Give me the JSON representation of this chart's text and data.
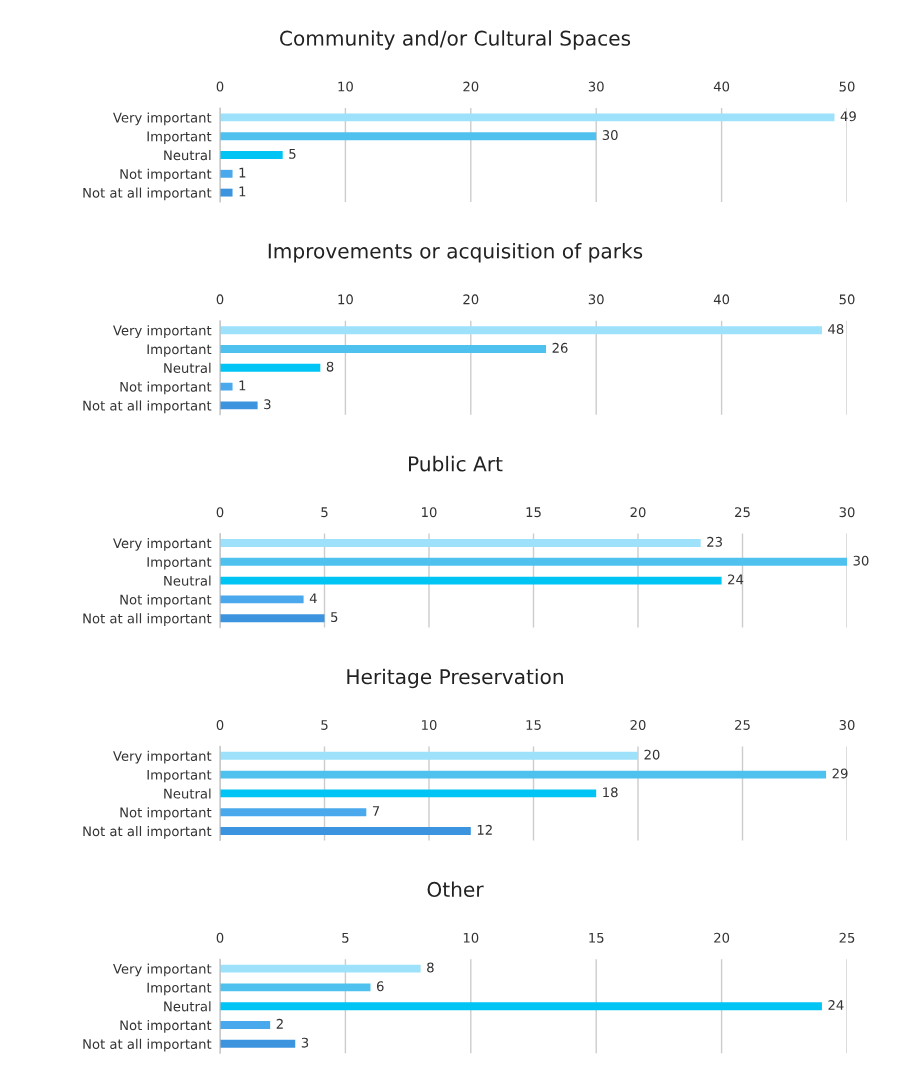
{
  "chart_data": [
    {
      "type": "bar",
      "orientation": "horizontal",
      "title": "Community and/or Cultural Spaces",
      "categories": [
        "Very important",
        "Important",
        "Neutral",
        "Not important",
        "Not at all important"
      ],
      "values": [
        49,
        30,
        5,
        1,
        1
      ],
      "colors": [
        "#9ee1fa",
        "#4fc1ef",
        "#00c4f4",
        "#4aa8ec",
        "#3d94de"
      ],
      "xlim": [
        0,
        50
      ],
      "xticks": [
        0,
        10,
        20,
        30,
        40,
        50
      ],
      "grid": "x",
      "data_labels": true
    },
    {
      "type": "bar",
      "orientation": "horizontal",
      "title": "Improvements or acquisition of parks",
      "categories": [
        "Very important",
        "Important",
        "Neutral",
        "Not important",
        "Not at all important"
      ],
      "values": [
        48,
        26,
        8,
        1,
        3
      ],
      "colors": [
        "#9ee1fa",
        "#4fc1ef",
        "#00c4f4",
        "#4aa8ec",
        "#3d94de"
      ],
      "xlim": [
        0,
        50
      ],
      "xticks": [
        0,
        10,
        20,
        30,
        40,
        50
      ],
      "grid": "x",
      "data_labels": true
    },
    {
      "type": "bar",
      "orientation": "horizontal",
      "title": "Public Art",
      "categories": [
        "Very important",
        "Important",
        "Neutral",
        "Not important",
        "Not at all important"
      ],
      "values": [
        23,
        30,
        24,
        4,
        5
      ],
      "colors": [
        "#9ee1fa",
        "#4fc1ef",
        "#00c4f4",
        "#4aa8ec",
        "#3d94de"
      ],
      "xlim": [
        0,
        30
      ],
      "xticks": [
        0,
        5,
        10,
        15,
        20,
        25,
        30
      ],
      "grid": "x",
      "data_labels": true
    },
    {
      "type": "bar",
      "orientation": "horizontal",
      "title": "Heritage Preservation",
      "categories": [
        "Very important",
        "Important",
        "Neutral",
        "Not important",
        "Not at all important"
      ],
      "values": [
        20,
        29,
        18,
        7,
        12
      ],
      "colors": [
        "#9ee1fa",
        "#4fc1ef",
        "#00c4f4",
        "#4aa8ec",
        "#3d94de"
      ],
      "xlim": [
        0,
        30
      ],
      "xticks": [
        0,
        5,
        10,
        15,
        20,
        25,
        30
      ],
      "grid": "x",
      "data_labels": true
    },
    {
      "type": "bar",
      "orientation": "horizontal",
      "title": "Other",
      "categories": [
        "Very important",
        "Important",
        "Neutral",
        "Not important",
        "Not at all important"
      ],
      "values": [
        8,
        6,
        24,
        2,
        3
      ],
      "colors": [
        "#9ee1fa",
        "#4fc1ef",
        "#00c4f4",
        "#4aa8ec",
        "#3d94de"
      ],
      "xlim": [
        0,
        25
      ],
      "xticks": [
        0,
        5,
        10,
        15,
        20,
        25
      ],
      "grid": "x",
      "data_labels": true
    }
  ]
}
